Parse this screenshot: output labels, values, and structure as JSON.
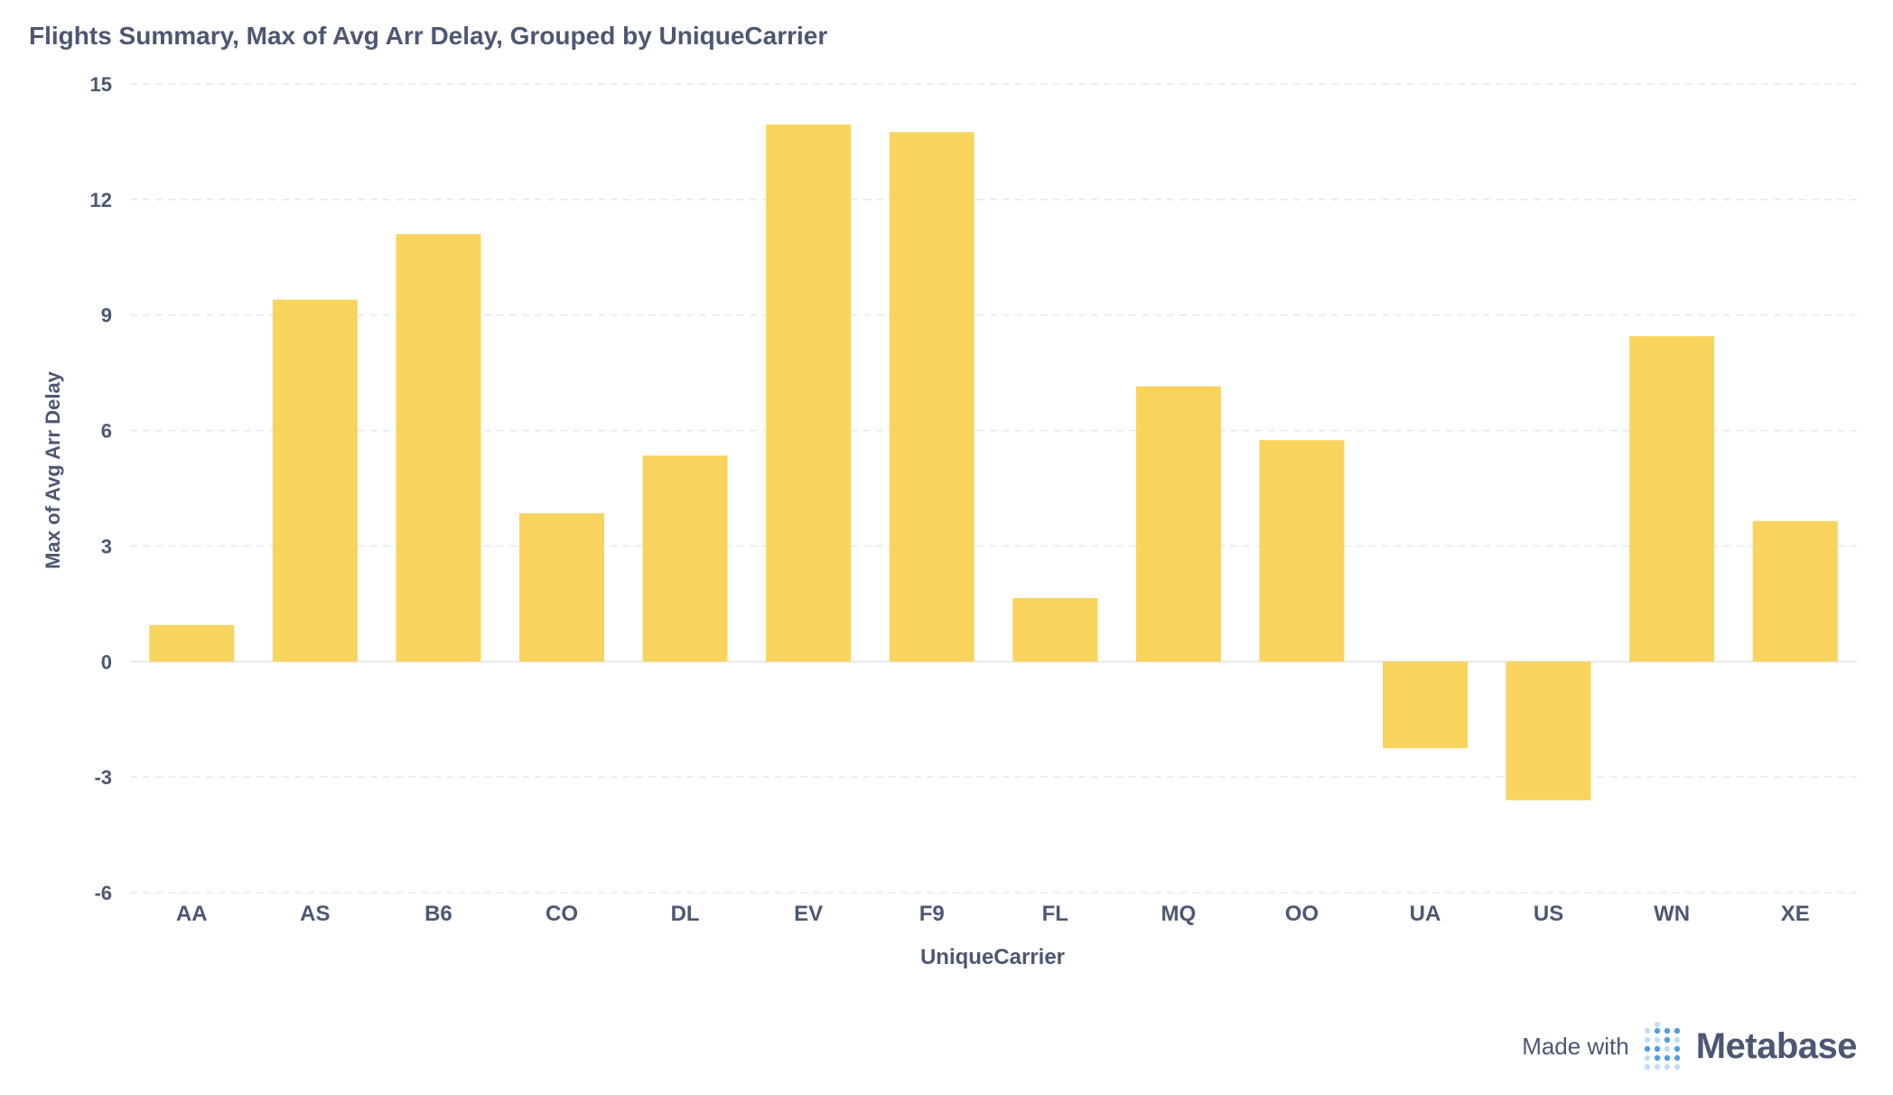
{
  "header": {
    "title": "Flights Summary, Max of Avg Arr Delay, Grouped by UniqueCarrier"
  },
  "chart_data": {
    "type": "bar",
    "title": "Flights Summary, Max of Avg Arr Delay, Grouped by UniqueCarrier",
    "xlabel": "UniqueCarrier",
    "ylabel": "Max of Avg Arr Delay",
    "categories": [
      "AA",
      "AS",
      "B6",
      "CO",
      "DL",
      "EV",
      "F9",
      "FL",
      "MQ",
      "OO",
      "UA",
      "US",
      "WN",
      "XE"
    ],
    "values": [
      0.95,
      9.4,
      11.1,
      3.85,
      5.35,
      13.95,
      13.75,
      1.65,
      7.15,
      5.75,
      -2.25,
      -3.6,
      8.45,
      3.65
    ],
    "yticks": [
      -6,
      -3,
      0,
      3,
      6,
      9,
      12,
      15
    ],
    "ytick_labels": [
      "-6",
      "-3",
      "0",
      "3",
      "6",
      "9",
      "12",
      "15"
    ],
    "ylim": [
      -6,
      15
    ],
    "grid": true,
    "bar_color": "#f9d45c",
    "text_color": "#4c5773",
    "grid_color": "#e6e8ec"
  },
  "footer": {
    "made_with": "Made with",
    "brand": "Metabase",
    "logo_color": "#509ee3"
  }
}
